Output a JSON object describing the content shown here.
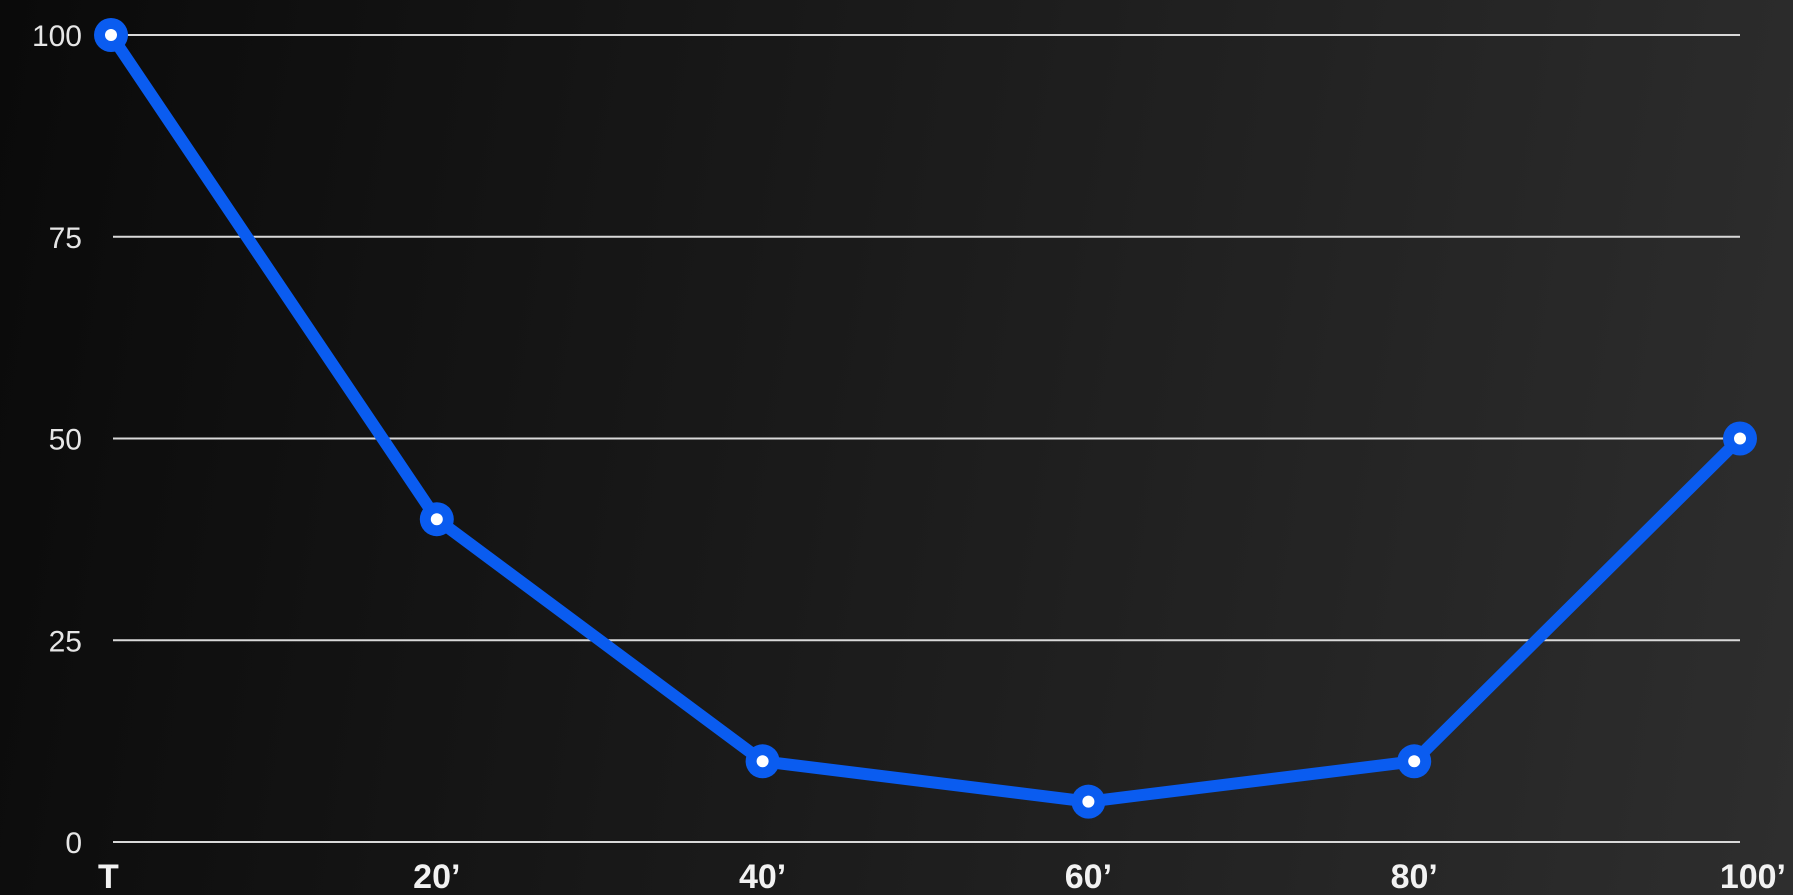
{
  "chart_data": {
    "type": "line",
    "categories": [
      "T",
      "20’",
      "40’",
      "60’",
      "80’",
      "100’"
    ],
    "series": [
      {
        "values": [
          100,
          40,
          10,
          5,
          10,
          50
        ]
      }
    ],
    "y_ticks": [
      "0",
      "25",
      "50",
      "75",
      "100"
    ],
    "ylim": [
      0,
      100
    ],
    "grid": true,
    "legend": "none",
    "colors": {
      "line": "#0a5cf0",
      "point_fill": "#ffffff",
      "grid": "#d9d9d9",
      "text": "#e6e6e6"
    }
  }
}
